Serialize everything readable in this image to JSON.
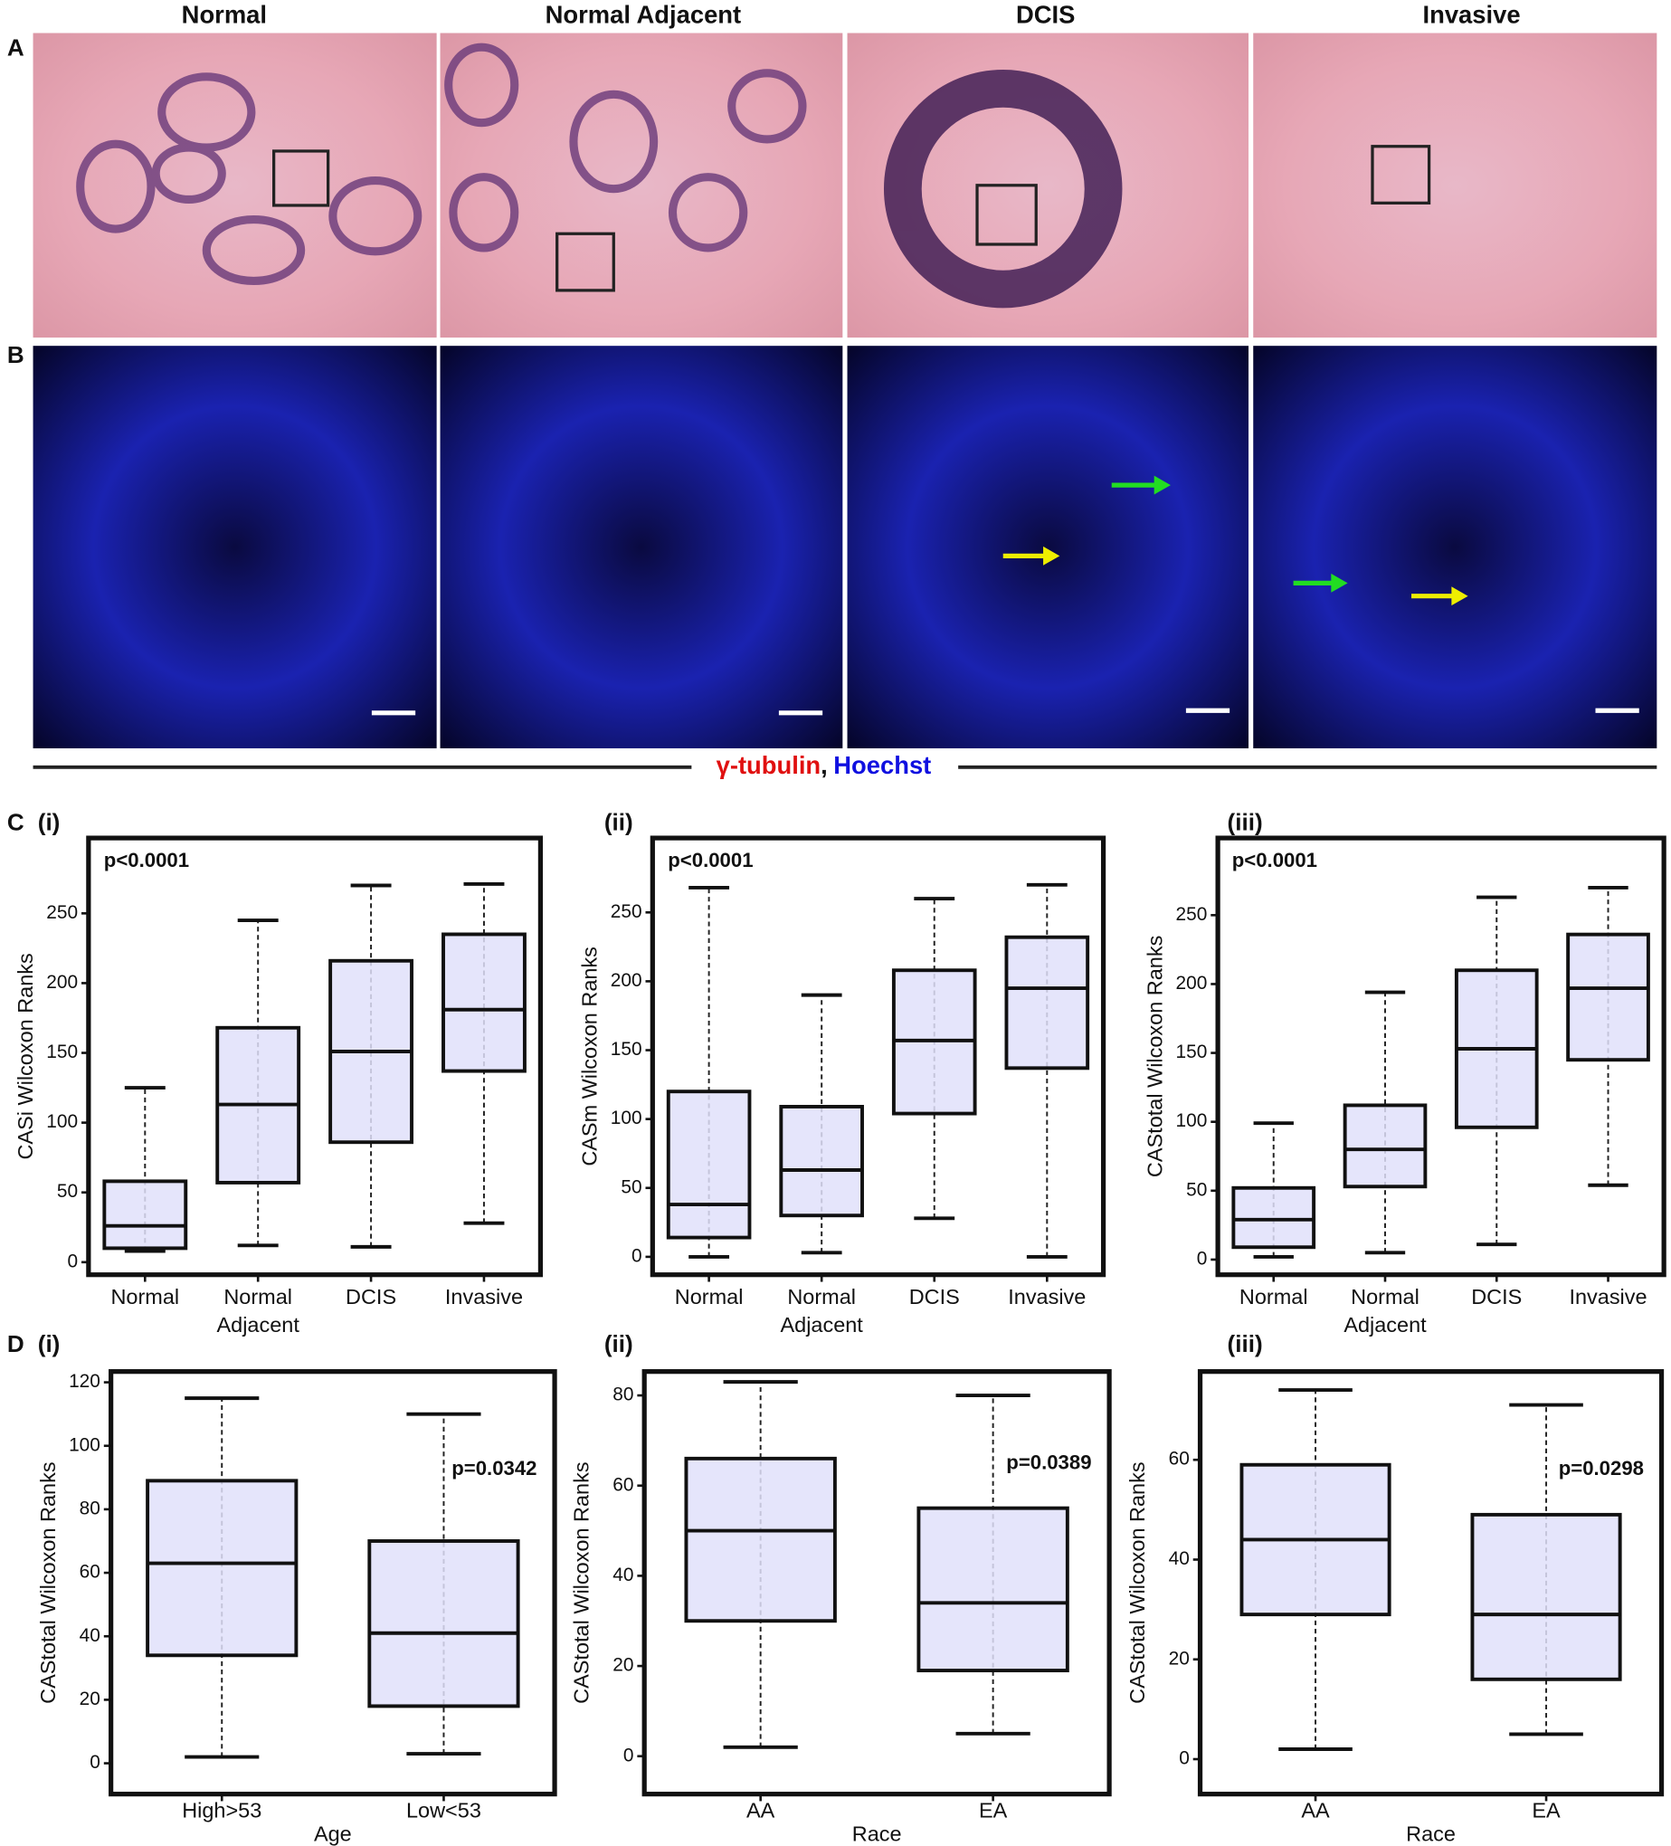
{
  "column_headers": [
    "Normal",
    "Normal Adjacent",
    "DCIS",
    "Invasive"
  ],
  "panel_labels": {
    "A": "A",
    "B": "B",
    "C": "C",
    "D": "D"
  },
  "stain_legend": {
    "red": "γ-tubulin",
    "separator": ",",
    "blue": "Hoechst"
  },
  "chart_data": [
    {
      "type": "box",
      "title": "(i)",
      "panel": "C",
      "y_label": "CASi Wilcoxon Ranks",
      "annotation": "p<0.0001",
      "categories": [
        "Normal",
        "Normal Adjacent",
        "DCIS",
        "Invasive"
      ],
      "stats": {
        "min": [
          8,
          12,
          11,
          28
        ],
        "q1": [
          10,
          57,
          86,
          137
        ],
        "median": [
          26,
          113,
          151,
          181
        ],
        "q3": [
          58,
          168,
          216,
          235
        ],
        "max": [
          125,
          245,
          270,
          271
        ]
      },
      "color": "#e0e0fa",
      "ylim": [
        -9,
        304
      ],
      "yticks": [
        0,
        50,
        100,
        150,
        200,
        250
      ]
    },
    {
      "type": "box",
      "title": "(ii)",
      "y_label": "CASm Wilcoxon Ranks",
      "annotation": "p<0.0001",
      "categories": [
        "Normal",
        "Normal Adjacent",
        "DCIS",
        "Invasive"
      ],
      "stats": {
        "min": [
          0,
          3,
          28,
          0
        ],
        "q1": [
          14,
          30,
          104,
          137
        ],
        "median": [
          38,
          63,
          157,
          195
        ],
        "q3": [
          120,
          109,
          208,
          232
        ],
        "max": [
          268,
          190,
          260,
          270
        ]
      },
      "color": "#e0e0fa",
      "ylim": [
        -13,
        304
      ],
      "yticks": [
        0,
        50,
        100,
        150,
        200,
        250
      ]
    },
    {
      "type": "box",
      "title": "(iii)",
      "y_label": "CAStotal Wilcoxon Ranks",
      "annotation": "p<0.0001",
      "categories": [
        "Normal",
        "Normal Adjacent",
        "DCIS",
        "Invasive"
      ],
      "stats": {
        "min": [
          2,
          5,
          11,
          54
        ],
        "q1": [
          9,
          53,
          96,
          145
        ],
        "median": [
          29,
          80,
          153,
          197
        ],
        "q3": [
          52,
          112,
          210,
          236
        ],
        "max": [
          99,
          194,
          263,
          270
        ]
      },
      "color": "#e0e0fa",
      "ylim": [
        -11,
        306
      ],
      "yticks": [
        0,
        50,
        100,
        150,
        200,
        250
      ]
    },
    {
      "type": "box",
      "title": "(i)",
      "panel": "D",
      "y_label": "CAStotal Wilcoxon Ranks",
      "x_label": "Age",
      "annotation": "p=0.0342",
      "categories": [
        "High>53",
        "Low<53"
      ],
      "stats": {
        "min": [
          2,
          3
        ],
        "q1": [
          34,
          18
        ],
        "median": [
          63,
          41
        ],
        "q3": [
          89,
          70
        ],
        "max": [
          115,
          110
        ]
      },
      "color": "#e0e0fa",
      "ylim": [
        -9.7,
        123.4
      ],
      "yticks": [
        0,
        20,
        40,
        60,
        80,
        100,
        120
      ]
    },
    {
      "type": "box",
      "title": "(ii)",
      "y_label": "CAStotal Wilcoxon Ranks",
      "x_label": "Race",
      "annotation": "p=0.0389",
      "categories": [
        "AA",
        "EA"
      ],
      "stats": {
        "min": [
          2,
          5
        ],
        "q1": [
          30,
          19
        ],
        "median": [
          50,
          34
        ],
        "q3": [
          66,
          55
        ],
        "max": [
          83,
          80
        ]
      },
      "color": "#e0e0fa",
      "ylim": [
        -8.4,
        85.3
      ],
      "yticks": [
        0,
        20,
        40,
        60,
        80
      ]
    },
    {
      "type": "box",
      "title": "(iii)",
      "y_label": "CAStotal Wilcoxon Ranks",
      "x_label": "Race",
      "annotation": "p=0.0298",
      "categories": [
        "AA",
        "EA"
      ],
      "stats": {
        "min": [
          2,
          5
        ],
        "q1": [
          29,
          16
        ],
        "median": [
          44,
          29
        ],
        "q3": [
          59,
          49
        ],
        "max": [
          74,
          71
        ]
      },
      "color": "#e0e0fa",
      "ylim": [
        -7,
        77.7
      ],
      "yticks": [
        0,
        20,
        40,
        60
      ]
    }
  ]
}
